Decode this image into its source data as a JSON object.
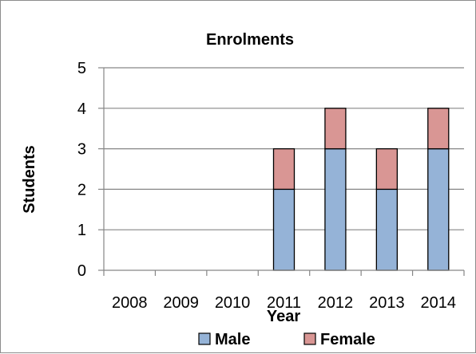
{
  "chart_data": {
    "type": "bar",
    "stacked": true,
    "title": "Enrolments",
    "xlabel": "Year",
    "ylabel": "Students",
    "categories": [
      "2008",
      "2009",
      "2010",
      "2011",
      "2012",
      "2013",
      "2014"
    ],
    "series": [
      {
        "name": "Male",
        "values": [
          0,
          0,
          0,
          2,
          3,
          2,
          3
        ],
        "color": "#95b3d7"
      },
      {
        "name": "Female",
        "values": [
          0,
          0,
          0,
          1,
          1,
          1,
          1
        ],
        "color": "#d99694"
      }
    ],
    "ylim": [
      0,
      5
    ],
    "yticks": [
      0,
      1,
      2,
      3,
      4,
      5
    ],
    "grid": "horizontal",
    "legend": "bottom",
    "gridColor": "#868686",
    "barStroke": "#000000"
  }
}
